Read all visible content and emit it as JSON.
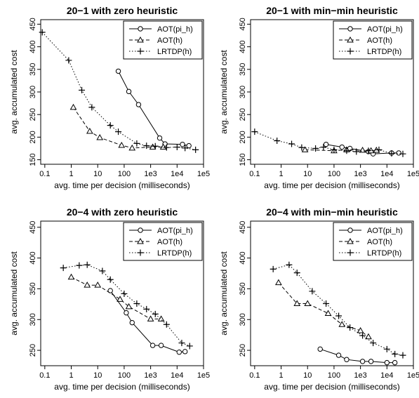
{
  "chart_data": [
    {
      "type": "line",
      "title": "20−1 with zero heuristic",
      "xlabel": "avg. time per decision (milliseconds)",
      "ylabel": "avg. accumulated cost",
      "x_scale": "log",
      "xlim": [
        0.07,
        100000
      ],
      "ylim": [
        140,
        460
      ],
      "x_ticks": [
        0.1,
        1,
        10,
        100,
        1000,
        10000,
        100000
      ],
      "x_tick_labels": [
        "0.1",
        "1",
        "10",
        "100",
        "1e3",
        "1e4",
        "1e5"
      ],
      "y_ticks": [
        150,
        200,
        250,
        300,
        350,
        400,
        450
      ],
      "y_tick_labels": [
        "150",
        "200",
        "250",
        "300",
        "350",
        "400",
        "450"
      ],
      "legend_position": "top-right",
      "series": [
        {
          "name": "AOT(pi_h)",
          "marker": "circle",
          "line": "solid",
          "x": [
            60,
            150,
            350,
            2200,
            3500,
            16000,
            28000
          ],
          "y": [
            346,
            301,
            272,
            198,
            185,
            184,
            181
          ]
        },
        {
          "name": "AOT(h)",
          "marker": "triangle",
          "line": "dashed",
          "x": [
            1.2,
            5,
            12,
            80,
            200,
            1200,
            3000
          ],
          "y": [
            266,
            213,
            199,
            182,
            176,
            178,
            178
          ]
        },
        {
          "name": "LRTDP(h)",
          "marker": "plus",
          "line": "dotted",
          "x": [
            0.08,
            0.8,
            2.5,
            6,
            30,
            60,
            300,
            700,
            1500,
            4000,
            10000,
            20000,
            50000
          ],
          "y": [
            432,
            370,
            304,
            266,
            226,
            212,
            186,
            181,
            180,
            177,
            178,
            176,
            172
          ]
        }
      ]
    },
    {
      "type": "line",
      "title": "20−1 with min−min heuristic",
      "xlabel": "avg. time per decision (milliseconds)",
      "ylabel": "avg. accumulated cost",
      "x_scale": "log",
      "xlim": [
        0.07,
        100000
      ],
      "ylim": [
        140,
        460
      ],
      "x_ticks": [
        0.1,
        1,
        10,
        100,
        1000,
        10000,
        100000
      ],
      "x_tick_labels": [
        "0.1",
        "1",
        "10",
        "100",
        "1e3",
        "1e4",
        "1e5"
      ],
      "y_ticks": [
        150,
        200,
        250,
        300,
        350,
        400,
        450
      ],
      "y_tick_labels": [
        "150",
        "200",
        "250",
        "300",
        "350",
        "400",
        "450"
      ],
      "legend_position": "top-right",
      "series": [
        {
          "name": "AOT(pi_h)",
          "marker": "circle",
          "line": "solid",
          "x": [
            50,
            200,
            400,
            2000,
            3000,
            15000,
            28000
          ],
          "y": [
            184,
            178,
            175,
            168,
            163,
            165,
            165
          ]
        },
        {
          "name": "AOT(h)",
          "marker": "triangle",
          "line": "dashed",
          "x": [
            8,
            100,
            300,
            1200,
            2500,
            4000
          ],
          "y": [
            172,
            170,
            172,
            171,
            170,
            171
          ]
        },
        {
          "name": "LRTDP(h)",
          "marker": "plus",
          "line": "dotted",
          "x": [
            0.1,
            0.7,
            2.5,
            6,
            20,
            40,
            100,
            300,
            700,
            2000,
            5000,
            15000,
            40000
          ],
          "y": [
            212,
            192,
            185,
            177,
            175,
            178,
            172,
            170,
            168,
            170,
            172,
            164,
            163
          ]
        }
      ]
    },
    {
      "type": "line",
      "title": "20−4 with zero heuristic",
      "xlabel": "avg. time per decision (milliseconds)",
      "ylabel": "avg. accumulated cost",
      "x_scale": "log",
      "xlim": [
        0.07,
        100000
      ],
      "ylim": [
        225,
        460
      ],
      "x_ticks": [
        0.1,
        1,
        10,
        100,
        1000,
        10000,
        100000
      ],
      "x_tick_labels": [
        "0.1",
        "1",
        "10",
        "100",
        "1e3",
        "1e4",
        "1e5"
      ],
      "y_ticks": [
        250,
        300,
        350,
        400,
        450
      ],
      "y_tick_labels": [
        "250",
        "300",
        "350",
        "400",
        "450"
      ],
      "legend_position": "top-right",
      "series": [
        {
          "name": "AOT(pi_h)",
          "marker": "circle",
          "line": "solid",
          "x": [
            30,
            120,
            200,
            1200,
            2500,
            12000,
            20000
          ],
          "y": [
            347,
            311,
            295,
            258,
            258,
            247,
            248
          ]
        },
        {
          "name": "AOT(h)",
          "marker": "triangle",
          "line": "dashed",
          "x": [
            1,
            4,
            10,
            70,
            150,
            1000,
            2500
          ],
          "y": [
            369,
            356,
            356,
            333,
            321,
            301,
            301
          ]
        },
        {
          "name": "LRTDP(h)",
          "marker": "plus",
          "line": "dotted",
          "x": [
            0.5,
            2,
            4,
            15,
            30,
            100,
            300,
            700,
            1500,
            4000,
            15000,
            30000
          ],
          "y": [
            384,
            388,
            389,
            379,
            365,
            342,
            326,
            317,
            309,
            292,
            262,
            257
          ]
        }
      ]
    },
    {
      "type": "line",
      "title": "20−4 with min−min heuristic",
      "xlabel": "avg. time per decision (milliseconds)",
      "ylabel": "avg. accumulated cost",
      "x_scale": "log",
      "xlim": [
        0.07,
        100000
      ],
      "ylim": [
        225,
        460
      ],
      "x_ticks": [
        0.1,
        1,
        10,
        100,
        1000,
        10000,
        100000
      ],
      "x_tick_labels": [
        "0.1",
        "1",
        "10",
        "100",
        "1e3",
        "1e4",
        "1e5"
      ],
      "y_ticks": [
        250,
        300,
        350,
        400,
        450
      ],
      "y_tick_labels": [
        "250",
        "300",
        "350",
        "400",
        "450"
      ],
      "legend_position": "top-right",
      "series": [
        {
          "name": "AOT(pi_h)",
          "marker": "circle",
          "line": "solid",
          "x": [
            30,
            150,
            300,
            1200,
            2500,
            10000,
            20000
          ],
          "y": [
            252,
            242,
            235,
            232,
            232,
            230,
            230
          ]
        },
        {
          "name": "AOT(h)",
          "marker": "triangle",
          "line": "dashed",
          "x": [
            0.8,
            4,
            10,
            60,
            200,
            1000,
            2000
          ],
          "y": [
            360,
            326,
            326,
            310,
            292,
            282,
            272
          ]
        },
        {
          "name": "LRTDP(h)",
          "marker": "plus",
          "line": "dotted",
          "x": [
            0.5,
            2,
            4,
            15,
            50,
            150,
            400,
            1200,
            3000,
            10000,
            20000,
            40000
          ],
          "y": [
            382,
            389,
            376,
            346,
            326,
            306,
            287,
            274,
            262,
            252,
            244,
            242
          ]
        }
      ]
    }
  ]
}
